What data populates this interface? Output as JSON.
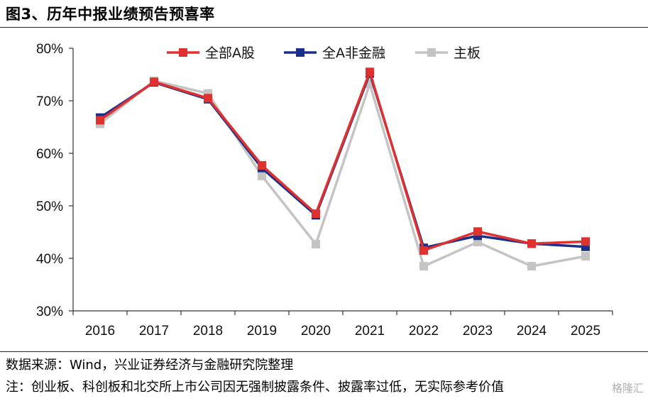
{
  "figure_title": "图3、历年中报业绩预告预喜率",
  "source_note": "数据来源：Wind，兴业证券经济与金融研究院整理",
  "remark_note": "注：创业板、科创板和北交所上市公司因无强制披露条件、披露率过低，无实际参考价值",
  "watermark": "格隆汇",
  "chart_data": {
    "type": "line",
    "title": "",
    "xlabel": "",
    "ylabel": "",
    "categories": [
      "2016",
      "2017",
      "2018",
      "2019",
      "2020",
      "2021",
      "2022",
      "2023",
      "2024",
      "2025"
    ],
    "ylim": [
      0.3,
      0.8
    ],
    "yticks": [
      0.3,
      0.4,
      0.5,
      0.6,
      0.7,
      0.8
    ],
    "ytick_labels": [
      "30%",
      "40%",
      "50%",
      "60%",
      "70%",
      "80%"
    ],
    "grid": false,
    "legend_position": "top",
    "series": [
      {
        "name": "全部A股",
        "color": "#e03131",
        "values": [
          0.663,
          0.736,
          0.705,
          0.577,
          0.485,
          0.755,
          0.415,
          0.451,
          0.428,
          0.432
        ]
      },
      {
        "name": "全A非金融",
        "color": "#1a2f8a",
        "values": [
          0.668,
          0.735,
          0.703,
          0.572,
          0.482,
          0.752,
          0.42,
          0.443,
          0.428,
          0.422
        ]
      },
      {
        "name": "主板",
        "color": "#c4c4c4",
        "values": [
          0.656,
          0.738,
          0.714,
          0.557,
          0.427,
          0.732,
          0.385,
          0.431,
          0.385,
          0.404
        ]
      }
    ]
  }
}
